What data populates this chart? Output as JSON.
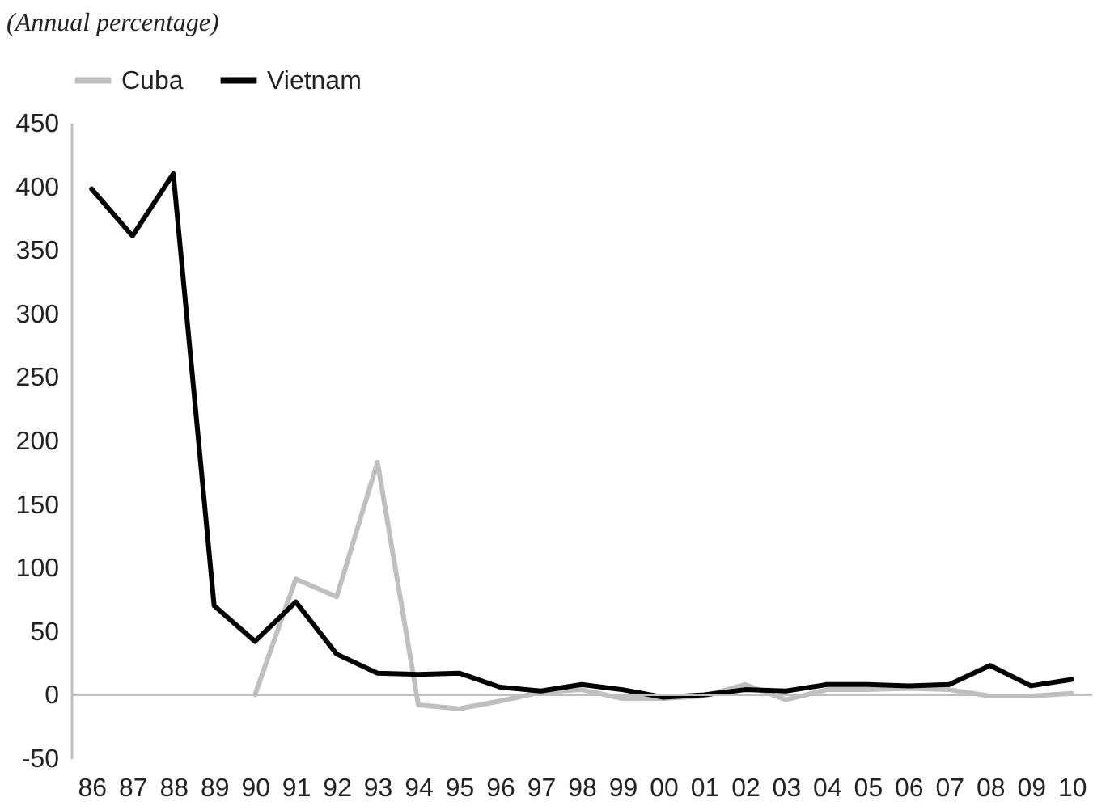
{
  "chart_data": {
    "type": "line",
    "title": "(Annual percentage)",
    "categories": [
      "86",
      "87",
      "88",
      "89",
      "90",
      "91",
      "92",
      "93",
      "94",
      "95",
      "96",
      "97",
      "98",
      "99",
      "00",
      "01",
      "02",
      "03",
      "04",
      "05",
      "06",
      "07",
      "08",
      "09",
      "10"
    ],
    "series": [
      {
        "name": "Cuba",
        "color": "#bfbfbf",
        "values": [
          null,
          null,
          null,
          null,
          0,
          91,
          77,
          183,
          -8,
          -11,
          -5,
          2,
          4,
          -3,
          -3,
          -1,
          8,
          -4,
          4,
          4,
          5,
          4,
          -1,
          -1,
          1
        ]
      },
      {
        "name": "Vietnam",
        "color": "#000000",
        "values": [
          398,
          361,
          410,
          70,
          42,
          73,
          32,
          17,
          16,
          17,
          6,
          3,
          8,
          4,
          -2,
          0,
          4,
          3,
          8,
          8,
          7,
          8,
          23,
          7,
          12
        ]
      }
    ],
    "ylim": [
      -50,
      450
    ],
    "yticks": [
      -50,
      0,
      50,
      100,
      150,
      200,
      250,
      300,
      350,
      400,
      450
    ],
    "ref_lines": [
      {
        "axis": "y",
        "value": 0,
        "color": "#bfbfbf"
      }
    ],
    "grid": false,
    "legend": "top",
    "marker": "none"
  }
}
